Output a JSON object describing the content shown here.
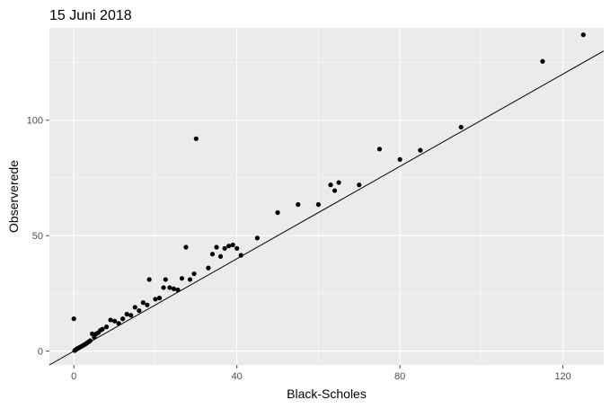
{
  "chart_data": {
    "type": "scatter",
    "title": "15 Juni 2018",
    "xlabel": "Black-Scholes",
    "ylabel": "Observerede",
    "xlim": [
      -6,
      130
    ],
    "ylim": [
      -6,
      140
    ],
    "xticks": [
      0,
      40,
      80,
      120
    ],
    "yticks": [
      0,
      50,
      100
    ],
    "xminor": [
      20,
      60,
      100
    ],
    "yminor": [
      25,
      75,
      125
    ],
    "grid": true,
    "reference_line": {
      "slope": 1,
      "intercept": 0
    },
    "points": [
      [
        0,
        14
      ],
      [
        0.2,
        0.2
      ],
      [
        0.4,
        0.5
      ],
      [
        0.6,
        0.8
      ],
      [
        0.8,
        1
      ],
      [
        1,
        1.2
      ],
      [
        1.3,
        1.5
      ],
      [
        1.6,
        1.8
      ],
      [
        2,
        2.2
      ],
      [
        2.4,
        2.6
      ],
      [
        2.8,
        3
      ],
      [
        3.2,
        3.5
      ],
      [
        3.6,
        4
      ],
      [
        4,
        4.5
      ],
      [
        4.5,
        7.5
      ],
      [
        5,
        6
      ],
      [
        5.5,
        7.5
      ],
      [
        6,
        8
      ],
      [
        6.5,
        9
      ],
      [
        7,
        9.5
      ],
      [
        8,
        10.5
      ],
      [
        9,
        13.5
      ],
      [
        10,
        13
      ],
      [
        11,
        12
      ],
      [
        12,
        14
      ],
      [
        13,
        16
      ],
      [
        14,
        15.5
      ],
      [
        15,
        19
      ],
      [
        16,
        17.5
      ],
      [
        17,
        21
      ],
      [
        18,
        20
      ],
      [
        18.5,
        31
      ],
      [
        20,
        22.5
      ],
      [
        21,
        23
      ],
      [
        22,
        27.5
      ],
      [
        22.5,
        31
      ],
      [
        23.5,
        27.5
      ],
      [
        24.5,
        27
      ],
      [
        25.5,
        26.5
      ],
      [
        26.5,
        31.5
      ],
      [
        27.5,
        45
      ],
      [
        28.5,
        31
      ],
      [
        29.5,
        33.5
      ],
      [
        30,
        92
      ],
      [
        33,
        36
      ],
      [
        34,
        42
      ],
      [
        35,
        45
      ],
      [
        36,
        41
      ],
      [
        37,
        44.5
      ],
      [
        38,
        45.5
      ],
      [
        39,
        46
      ],
      [
        40,
        44.5
      ],
      [
        41,
        41.5
      ],
      [
        45,
        49
      ],
      [
        50,
        60
      ],
      [
        55,
        63.5
      ],
      [
        60,
        63.5
      ],
      [
        63,
        72
      ],
      [
        64,
        69.5
      ],
      [
        65,
        73
      ],
      [
        70,
        72
      ],
      [
        75,
        87.5
      ],
      [
        80,
        83
      ],
      [
        85,
        87
      ],
      [
        95,
        97
      ],
      [
        115,
        125.5
      ],
      [
        125,
        137
      ]
    ],
    "colors": {
      "panel_background": "#ebebeb",
      "grid": "#ffffff",
      "point": "#000000",
      "line": "#000000",
      "tick": "#4d4d4d"
    }
  }
}
